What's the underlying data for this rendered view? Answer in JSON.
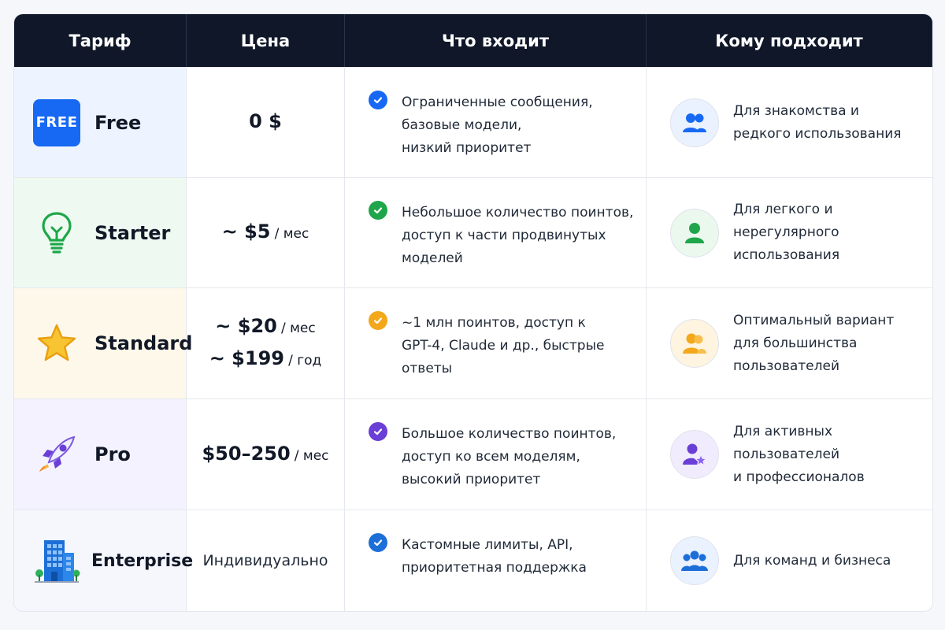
{
  "header": {
    "col_plan": "Тариф",
    "col_price": "Цена",
    "col_features": "Что входит",
    "col_audience": "Кому подходит",
    "background": "#0f1729"
  },
  "rows": [
    {
      "plan": "Free",
      "icon": "free-badge-icon",
      "icon_text": "FREE",
      "tint": "#eef4ff",
      "accent": "#1769f3",
      "price_main": "0 $",
      "features": "Ограниченные сообщения,\nбазовые модели,\nнизкий приоритет",
      "audience": "Для знакомства и\nредкого использования",
      "audience_icon": "users-icon"
    },
    {
      "plan": "Starter",
      "icon": "lightbulb-icon",
      "tint": "#eefaf1",
      "accent": "#1fa64a",
      "price_main": "~ $5",
      "price_unit": "/ мес",
      "features": "Небольшое количество поинтов,\nдоступ к части продвинутых\nмоделей",
      "audience": "Для легкого и\nнерегулярного\nиспользования",
      "audience_icon": "user-icon"
    },
    {
      "plan": "Standard",
      "icon": "star-icon",
      "tint": "#fef8ea",
      "accent": "#f3a71b",
      "price_main": "~ $20",
      "price_unit": "/ мес",
      "price_main_2": "~ $199",
      "price_unit_2": "/ год",
      "features": "~1 млн поинтов, доступ к\nGPT-4, Claude и др., быстрые\nответы",
      "audience": "Оптимальный вариант\nдля большинства\nпользователей",
      "audience_icon": "user-pair-icon"
    },
    {
      "plan": "Pro",
      "icon": "rocket-icon",
      "tint": "#f4f2fe",
      "accent": "#6a3fd6",
      "price_main": "$50–250",
      "price_unit": "/ мес",
      "features": "Большое количество поинтов,\nдоступ ко всем моделям,\nвысокий приоритет",
      "audience": "Для активных пользователей\nи профессионалов",
      "audience_icon": "user-star-icon"
    },
    {
      "plan": "Enterprise",
      "icon": "building-icon",
      "tint": "#f5f7fd",
      "accent": "#1d6fd8",
      "price_plain": "Индивидуально",
      "features": "Кастомные лимиты, API,\nприоритетная поддержка",
      "audience": "Для команд и бизнеса",
      "audience_icon": "team-icon"
    }
  ]
}
